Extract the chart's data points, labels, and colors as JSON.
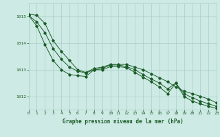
{
  "title": "Graphe pression niveau de la mer (hPa)",
  "bg_color": "#ceeae4",
  "grid_color": "#a8cfc8",
  "line_color": "#1a5c28",
  "x_min": 0,
  "x_max": 23,
  "y_min": 1011.5,
  "y_max": 1015.5,
  "y_ticks": [
    1012,
    1013,
    1014,
    1015
  ],
  "x_ticks": [
    0,
    1,
    2,
    3,
    4,
    5,
    6,
    7,
    8,
    9,
    10,
    11,
    12,
    13,
    14,
    15,
    16,
    17,
    18,
    19,
    20,
    21,
    22,
    23
  ],
  "series1": {
    "x": [
      0,
      1,
      2,
      3,
      4,
      5,
      6,
      7,
      8,
      9,
      10,
      11,
      12,
      13,
      14,
      15,
      16,
      17,
      18,
      19,
      20,
      21,
      22,
      23
    ],
    "y": [
      1015.1,
      1015.05,
      1014.75,
      1014.1,
      1013.7,
      1013.35,
      1013.0,
      1012.9,
      1013.05,
      1013.1,
      1013.2,
      1013.2,
      1013.2,
      1013.1,
      1013.0,
      1012.85,
      1012.7,
      1012.55,
      1012.35,
      1012.2,
      1012.1,
      1012.0,
      1011.9,
      1011.75
    ]
  },
  "series2": {
    "x": [
      0,
      1,
      2,
      3,
      4,
      5,
      6,
      7,
      8,
      9,
      10,
      11,
      12,
      13,
      14,
      15,
      16,
      17,
      18,
      19,
      20,
      21,
      22,
      23
    ],
    "y": [
      1015.05,
      1014.8,
      1014.4,
      1013.8,
      1013.4,
      1013.1,
      1012.95,
      1012.88,
      1013.0,
      1013.05,
      1013.18,
      1013.18,
      1013.12,
      1013.0,
      1012.82,
      1012.65,
      1012.5,
      1012.28,
      1012.5,
      1012.1,
      1011.95,
      1011.82,
      1011.72,
      1011.62
    ]
  },
  "series3": {
    "x": [
      0,
      1,
      2,
      3,
      4,
      5,
      6,
      7,
      8,
      9,
      10,
      11,
      12,
      13,
      14,
      15,
      16,
      17,
      18,
      19,
      20,
      21,
      22,
      23
    ],
    "y": [
      1015.05,
      1014.65,
      1013.95,
      1013.35,
      1013.0,
      1012.82,
      1012.78,
      1012.75,
      1013.0,
      1013.0,
      1013.12,
      1013.12,
      1013.08,
      1012.9,
      1012.72,
      1012.55,
      1012.35,
      1012.1,
      1012.5,
      1012.0,
      1011.82,
      1011.72,
      1011.62,
      1011.55
    ]
  },
  "figwidth": 3.2,
  "figheight": 2.0,
  "dpi": 100
}
